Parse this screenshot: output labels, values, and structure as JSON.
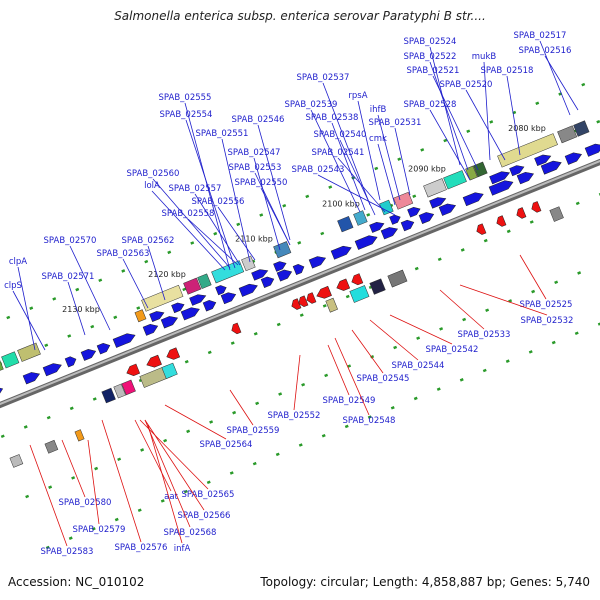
{
  "title": "Salmonella enterica subsp. enterica serovar Paratyphi B str....",
  "footer": {
    "accession": "Accession: NC_010102",
    "stats": "Topology: circular; Length: 4,858,887 bp; Genes: 5,740"
  },
  "colors": {
    "forward_label": "#1e1ecc",
    "reverse_label": "#dd1111",
    "forward_gene": "#1515dd",
    "reverse_gene": "#ee1111",
    "backbone": "#888888",
    "feature_tick": "#2a9a2a"
  },
  "kbp_ticks": [
    "2080 kbp",
    "2090 kbp",
    "2100 kbp",
    "2110 kbp",
    "2120 kbp",
    "2130 kbp"
  ],
  "forward_labels": [
    "SPAB_02524",
    "SPAB_02517",
    "SPAB_02516",
    "SPAB_02522",
    "mukB",
    "SPAB_02521",
    "SPAB_02518",
    "SPAB_02520",
    "SPAB_02537",
    "rpsA",
    "SPAB_02528",
    "SPAB_02539",
    "ihfB",
    "SPAB_02555",
    "SPAB_02538",
    "SPAB_02531",
    "SPAB_02554",
    "SPAB_02546",
    "SPAB_02540",
    "cmk",
    "SPAB_02551",
    "SPAB_02541",
    "SPAB_02547",
    "SPAB_02553",
    "SPAB_02543",
    "SPAB_02560",
    "SPAB_02550",
    "lolA",
    "SPAB_02557",
    "SPAB_02556",
    "SPAB_02558",
    "SPAB_02570",
    "SPAB_02562",
    "SPAB_02563",
    "clpA",
    "SPAB_02571",
    "clpS"
  ],
  "reverse_labels": [
    "SPAB_02525",
    "SPAB_02532",
    "SPAB_02533",
    "SPAB_02542",
    "SPAB_02544",
    "SPAB_02545",
    "SPAB_02549",
    "SPAB_02548",
    "SPAB_02552",
    "SPAB_02559",
    "SPAB_02564",
    "SPAB_02565",
    "aat",
    "SPAB_02566",
    "SPAB_02580",
    "SPAB_02568",
    "SPAB_02579",
    "infA",
    "SPAB_02576",
    "SPAB_02583"
  ]
}
